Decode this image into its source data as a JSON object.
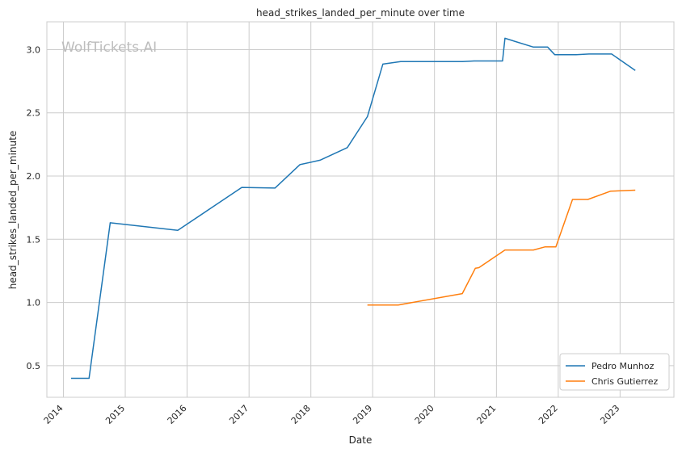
{
  "chart_data": {
    "type": "line",
    "title": "head_strikes_landed_per_minute over time",
    "xlabel": "Date",
    "ylabel": "head_strikes_landed_per_minute",
    "watermark": "WolfTickets.AI",
    "x_type": "date",
    "xlim": [
      "2013-09-25",
      "2023-11-15"
    ],
    "ylim": [
      0.25,
      3.22
    ],
    "x_ticks": [
      "2014",
      "2015",
      "2016",
      "2017",
      "2018",
      "2019",
      "2020",
      "2021",
      "2022",
      "2023"
    ],
    "y_ticks": [
      "0.5",
      "1.0",
      "1.5",
      "2.0",
      "2.5",
      "3.0"
    ],
    "grid": true,
    "legend_position": "bottom-right",
    "series": [
      {
        "name": "Pedro Munhoz",
        "color": "#1f77b4",
        "points": [
          [
            "2014-02-15",
            0.4
          ],
          [
            "2014-06-01",
            0.4
          ],
          [
            "2014-10-04",
            1.63
          ],
          [
            "2015-11-07",
            1.57
          ],
          [
            "2016-11-19",
            1.91
          ],
          [
            "2017-06-03",
            1.905
          ],
          [
            "2017-10-28",
            2.09
          ],
          [
            "2018-02-24",
            2.125
          ],
          [
            "2018-08-04",
            2.225
          ],
          [
            "2018-12-01",
            2.47
          ],
          [
            "2019-03-02",
            2.885
          ],
          [
            "2019-06-15",
            2.905
          ],
          [
            "2020-06-15",
            2.905
          ],
          [
            "2020-08-22",
            2.91
          ],
          [
            "2021-02-06",
            2.91
          ],
          [
            "2021-02-20",
            3.09
          ],
          [
            "2021-08-07",
            3.02
          ],
          [
            "2021-10-30",
            3.02
          ],
          [
            "2021-12-11",
            2.96
          ],
          [
            "2022-04-16",
            2.96
          ],
          [
            "2022-07-02",
            2.965
          ],
          [
            "2022-11-12",
            2.965
          ],
          [
            "2023-04-01",
            2.835
          ]
        ]
      },
      {
        "name": "Chris Gutierrez",
        "color": "#ff7f0e",
        "points": [
          [
            "2018-12-01",
            0.98
          ],
          [
            "2019-06-01",
            0.98
          ],
          [
            "2020-06-13",
            1.07
          ],
          [
            "2020-08-29",
            1.27
          ],
          [
            "2020-09-19",
            1.275
          ],
          [
            "2021-02-20",
            1.415
          ],
          [
            "2021-08-07",
            1.415
          ],
          [
            "2021-10-16",
            1.44
          ],
          [
            "2021-12-18",
            1.44
          ],
          [
            "2022-03-26",
            1.815
          ],
          [
            "2022-06-25",
            1.815
          ],
          [
            "2022-11-05",
            1.88
          ],
          [
            "2023-04-01",
            1.888
          ]
        ]
      }
    ]
  }
}
